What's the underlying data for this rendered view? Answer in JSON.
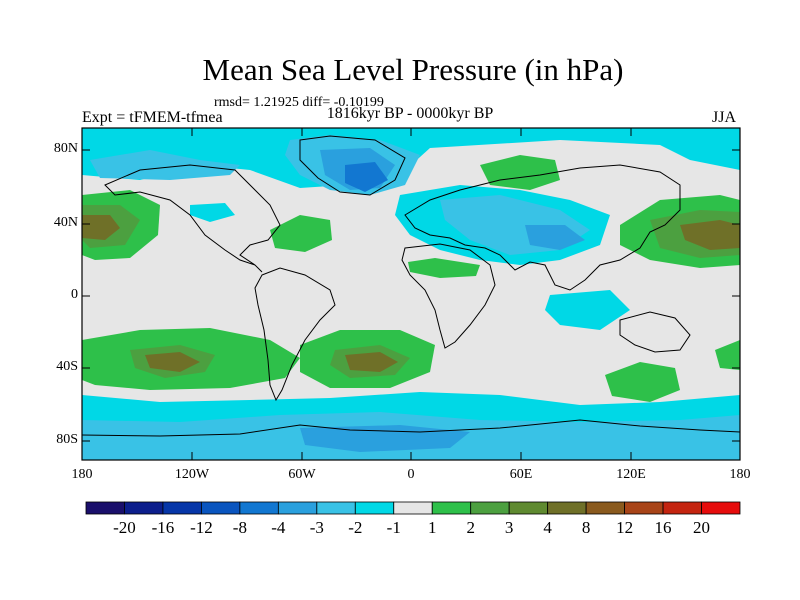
{
  "title": "Mean Sea Level Pressure (in hPa)",
  "stats": "rmsd= 1.21925 diff= -0.10199",
  "experiment": "Expt = tFMEM-tfmea",
  "period": "1816kyr BP - 0000kyr BP",
  "season": "JJA",
  "lat_labels": [
    "80N",
    "40N",
    "0",
    "40S",
    "80S"
  ],
  "lon_labels": [
    "180",
    "120W",
    "60W",
    "0",
    "60E",
    "120E",
    "180"
  ],
  "colorbar": {
    "colors": [
      "#1a0f6b",
      "#0c1e8c",
      "#0636a8",
      "#0a55bf",
      "#1277d1",
      "#2aa0de",
      "#39c2e6",
      "#00d8e6",
      "#e6e6e6",
      "#2ec04a",
      "#4ca040",
      "#5f8a30",
      "#6f7028",
      "#8a5a1e",
      "#a84418",
      "#c42410",
      "#e60c0c"
    ],
    "labels": [
      "-20",
      "-16",
      "-12",
      "-8",
      "-4",
      "-3",
      "-2",
      "-1",
      "1",
      "2",
      "3",
      "4",
      "8",
      "12",
      "16",
      "20"
    ]
  }
}
